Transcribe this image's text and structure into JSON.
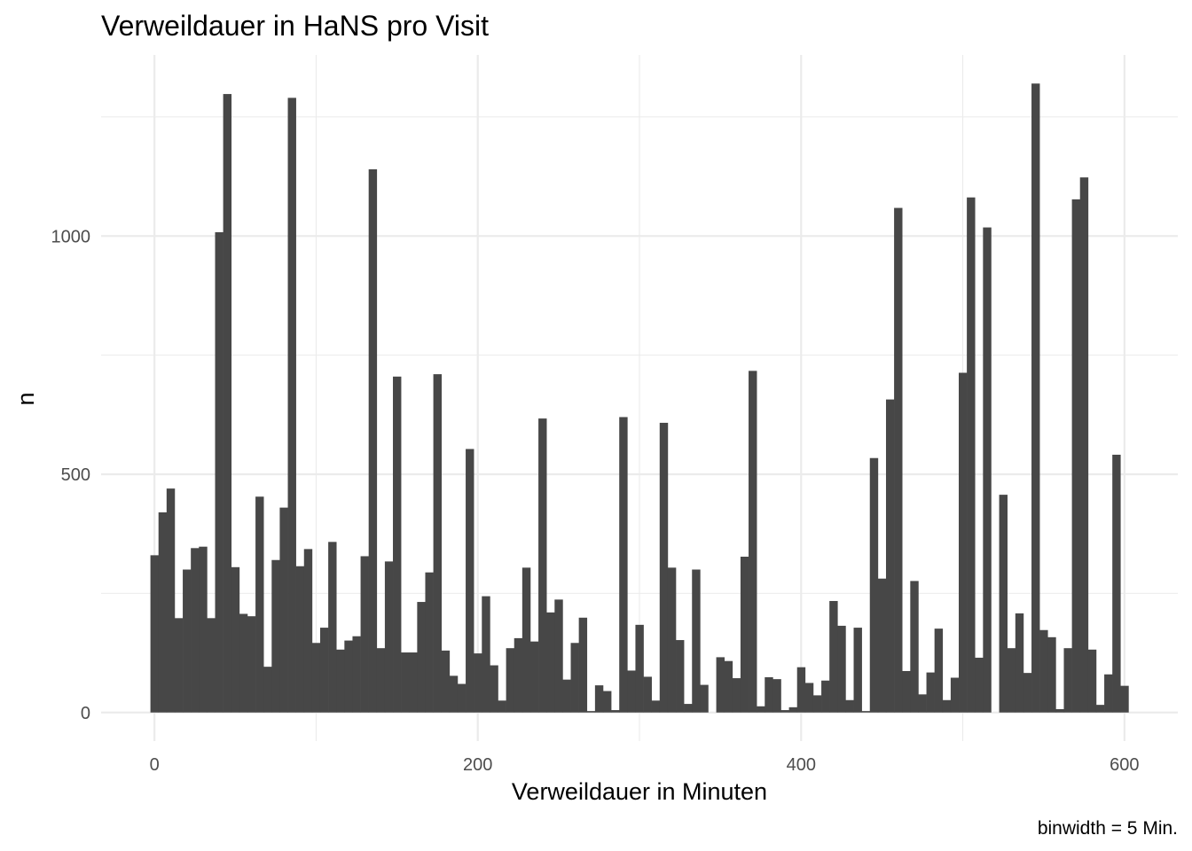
{
  "chart_data": {
    "type": "bar",
    "title": "Verweildauer in HaNS pro Visit",
    "xlabel": "Verweildauer in Minuten",
    "ylabel": "n",
    "caption": "binwidth = 5 Min.",
    "binwidth": 5,
    "xlim": [
      -33,
      633
    ],
    "ylim": [
      -60,
      1380
    ],
    "x_ticks": [
      0,
      200,
      400,
      600
    ],
    "x_tick_labels": [
      "0",
      "200",
      "400",
      "600"
    ],
    "y_ticks": [
      0,
      500,
      1000
    ],
    "y_tick_labels": [
      "0",
      "500",
      "1000"
    ],
    "x_minor_ticks": [
      100,
      300,
      500
    ],
    "y_minor_ticks": [
      250,
      750,
      1250
    ],
    "grid": true,
    "bar_color": "#474747",
    "bins": [
      {
        "x": 0,
        "n": 330
      },
      {
        "x": 5,
        "n": 420
      },
      {
        "x": 10,
        "n": 470
      },
      {
        "x": 15,
        "n": 198
      },
      {
        "x": 20,
        "n": 300
      },
      {
        "x": 25,
        "n": 345
      },
      {
        "x": 30,
        "n": 348
      },
      {
        "x": 35,
        "n": 198
      },
      {
        "x": 40,
        "n": 1008
      },
      {
        "x": 45,
        "n": 1298
      },
      {
        "x": 50,
        "n": 305
      },
      {
        "x": 55,
        "n": 207
      },
      {
        "x": 60,
        "n": 202
      },
      {
        "x": 65,
        "n": 453
      },
      {
        "x": 70,
        "n": 96
      },
      {
        "x": 75,
        "n": 320
      },
      {
        "x": 80,
        "n": 430
      },
      {
        "x": 85,
        "n": 1290
      },
      {
        "x": 90,
        "n": 307
      },
      {
        "x": 95,
        "n": 343
      },
      {
        "x": 100,
        "n": 146
      },
      {
        "x": 105,
        "n": 178
      },
      {
        "x": 110,
        "n": 358
      },
      {
        "x": 115,
        "n": 132
      },
      {
        "x": 120,
        "n": 151
      },
      {
        "x": 125,
        "n": 160
      },
      {
        "x": 130,
        "n": 328
      },
      {
        "x": 135,
        "n": 1140
      },
      {
        "x": 140,
        "n": 135
      },
      {
        "x": 145,
        "n": 317
      },
      {
        "x": 150,
        "n": 705
      },
      {
        "x": 155,
        "n": 126
      },
      {
        "x": 160,
        "n": 126
      },
      {
        "x": 165,
        "n": 232
      },
      {
        "x": 170,
        "n": 294
      },
      {
        "x": 175,
        "n": 710
      },
      {
        "x": 180,
        "n": 130
      },
      {
        "x": 185,
        "n": 77
      },
      {
        "x": 190,
        "n": 60
      },
      {
        "x": 195,
        "n": 553
      },
      {
        "x": 200,
        "n": 124
      },
      {
        "x": 205,
        "n": 244
      },
      {
        "x": 210,
        "n": 99
      },
      {
        "x": 215,
        "n": 25
      },
      {
        "x": 220,
        "n": 135
      },
      {
        "x": 225,
        "n": 156
      },
      {
        "x": 230,
        "n": 304
      },
      {
        "x": 235,
        "n": 149
      },
      {
        "x": 240,
        "n": 617
      },
      {
        "x": 245,
        "n": 210
      },
      {
        "x": 250,
        "n": 237
      },
      {
        "x": 255,
        "n": 69
      },
      {
        "x": 260,
        "n": 146
      },
      {
        "x": 265,
        "n": 199
      },
      {
        "x": 270,
        "n": 3
      },
      {
        "x": 275,
        "n": 57
      },
      {
        "x": 280,
        "n": 45
      },
      {
        "x": 285,
        "n": 5
      },
      {
        "x": 290,
        "n": 620
      },
      {
        "x": 295,
        "n": 88
      },
      {
        "x": 300,
        "n": 184
      },
      {
        "x": 305,
        "n": 75
      },
      {
        "x": 310,
        "n": 25
      },
      {
        "x": 315,
        "n": 608
      },
      {
        "x": 320,
        "n": 304
      },
      {
        "x": 325,
        "n": 152
      },
      {
        "x": 330,
        "n": 18
      },
      {
        "x": 335,
        "n": 300
      },
      {
        "x": 340,
        "n": 58
      },
      {
        "x": 345,
        "n": 0
      },
      {
        "x": 350,
        "n": 116
      },
      {
        "x": 355,
        "n": 108
      },
      {
        "x": 360,
        "n": 72
      },
      {
        "x": 365,
        "n": 327
      },
      {
        "x": 370,
        "n": 717
      },
      {
        "x": 375,
        "n": 13
      },
      {
        "x": 380,
        "n": 74
      },
      {
        "x": 385,
        "n": 70
      },
      {
        "x": 390,
        "n": 5
      },
      {
        "x": 395,
        "n": 11
      },
      {
        "x": 400,
        "n": 95
      },
      {
        "x": 405,
        "n": 62
      },
      {
        "x": 410,
        "n": 36
      },
      {
        "x": 415,
        "n": 67
      },
      {
        "x": 420,
        "n": 234
      },
      {
        "x": 425,
        "n": 182
      },
      {
        "x": 430,
        "n": 26
      },
      {
        "x": 435,
        "n": 178
      },
      {
        "x": 440,
        "n": 3
      },
      {
        "x": 445,
        "n": 534
      },
      {
        "x": 450,
        "n": 281
      },
      {
        "x": 455,
        "n": 657
      },
      {
        "x": 460,
        "n": 1059
      },
      {
        "x": 465,
        "n": 87
      },
      {
        "x": 470,
        "n": 276
      },
      {
        "x": 475,
        "n": 38
      },
      {
        "x": 480,
        "n": 84
      },
      {
        "x": 485,
        "n": 176
      },
      {
        "x": 490,
        "n": 26
      },
      {
        "x": 495,
        "n": 73
      },
      {
        "x": 500,
        "n": 713
      },
      {
        "x": 505,
        "n": 1081
      },
      {
        "x": 510,
        "n": 115
      },
      {
        "x": 515,
        "n": 1018
      },
      {
        "x": 520,
        "n": 0
      },
      {
        "x": 525,
        "n": 457
      },
      {
        "x": 530,
        "n": 135
      },
      {
        "x": 535,
        "n": 208
      },
      {
        "x": 540,
        "n": 83
      },
      {
        "x": 545,
        "n": 1320
      },
      {
        "x": 550,
        "n": 173
      },
      {
        "x": 555,
        "n": 158
      },
      {
        "x": 560,
        "n": 7
      },
      {
        "x": 565,
        "n": 135
      },
      {
        "x": 570,
        "n": 1077
      },
      {
        "x": 575,
        "n": 1123
      },
      {
        "x": 580,
        "n": 132
      },
      {
        "x": 585,
        "n": 16
      },
      {
        "x": 590,
        "n": 80
      },
      {
        "x": 595,
        "n": 541
      },
      {
        "x": 600,
        "n": 56
      }
    ]
  }
}
